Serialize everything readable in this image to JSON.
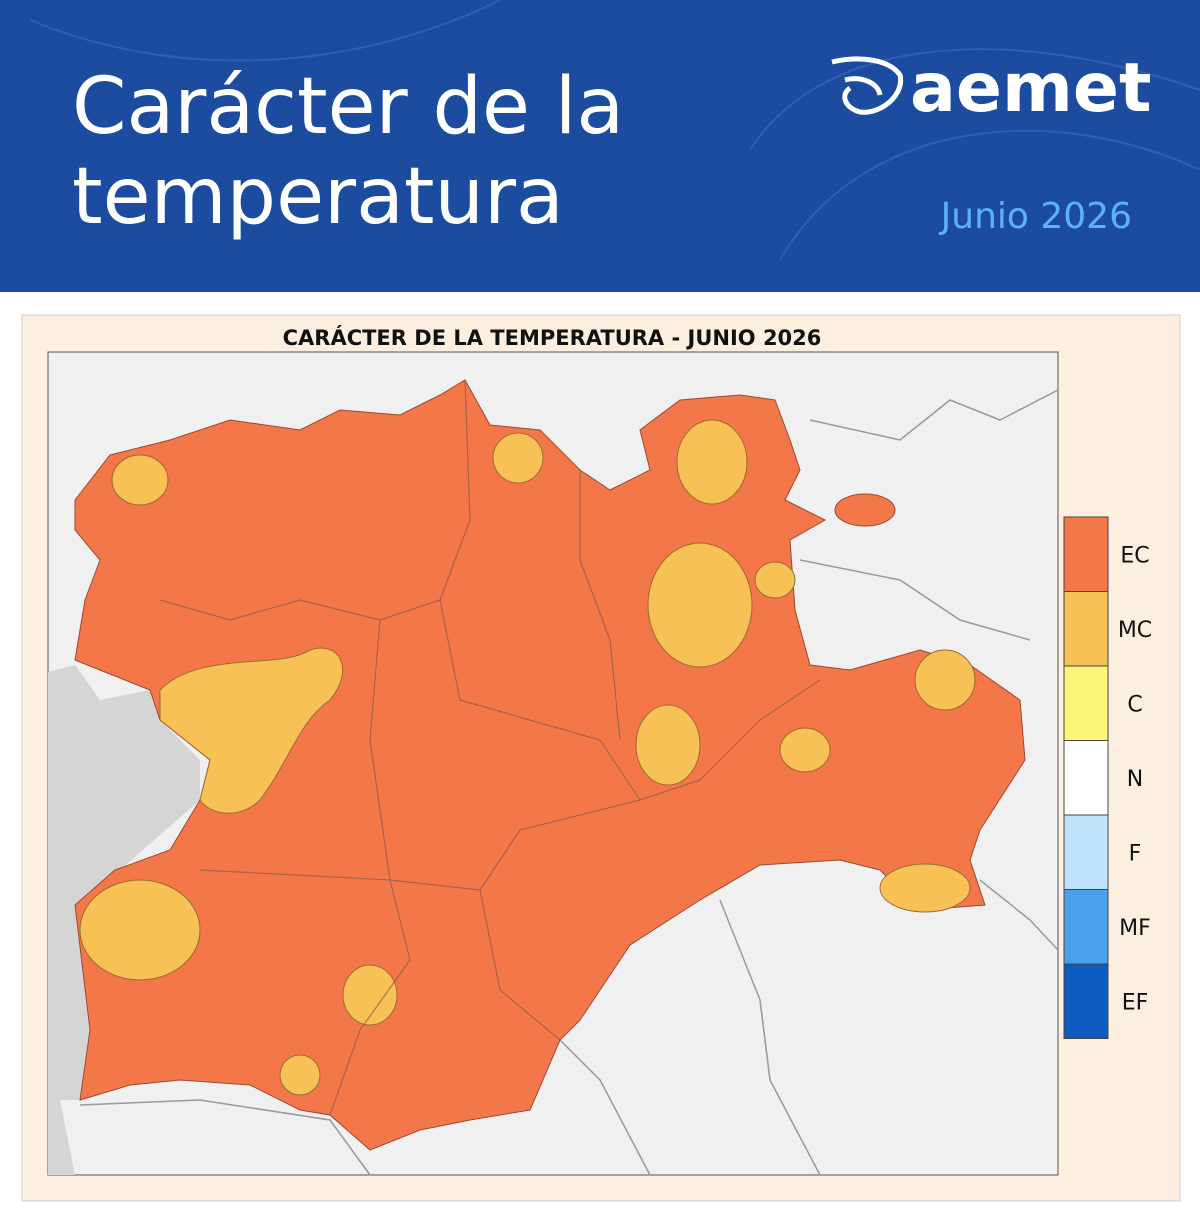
{
  "header": {
    "title_line1": "Carácter de la",
    "title_line2": "temperatura",
    "logo": "aemet",
    "date": "Junio 2026"
  },
  "map": {
    "title": "CARÁCTER DE LA TEMPERATURA - JUNIO 2026",
    "legend": [
      {
        "label": "EC",
        "color": "#f4774a"
      },
      {
        "label": "MC",
        "color": "#f8c156"
      },
      {
        "label": "C",
        "color": "#fdf579"
      },
      {
        "label": "N",
        "color": "#ffffff"
      },
      {
        "label": "F",
        "color": "#bfe3fb"
      },
      {
        "label": "MF",
        "color": "#4ba0ea"
      },
      {
        "label": "EF",
        "color": "#0d5bbf"
      }
    ]
  }
}
